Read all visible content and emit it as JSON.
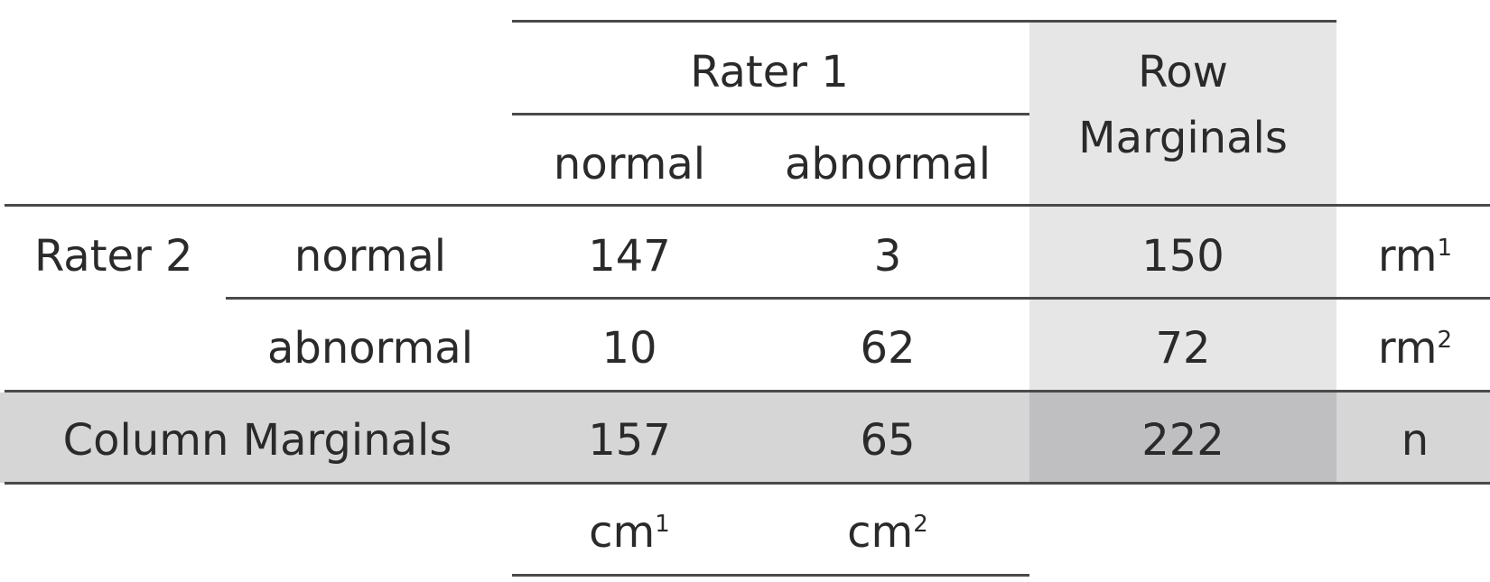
{
  "table": {
    "header": {
      "group_label": "Rater 1",
      "row_marginals_label_line1": "Row",
      "row_marginals_label_line2": "Marginals",
      "col_labels": [
        "normal",
        "abnormal"
      ]
    },
    "row_group_label": "Rater 2",
    "rows": [
      {
        "label": "normal",
        "values": [
          "147",
          "3"
        ],
        "marginal": "150",
        "marginal_symbol": "rm",
        "marginal_symbol_sup": "1"
      },
      {
        "label": "abnormal",
        "values": [
          "10",
          "62"
        ],
        "marginal": "72",
        "marginal_symbol": "rm",
        "marginal_symbol_sup": "2"
      }
    ],
    "column_marginals": {
      "label": "Column Marginals",
      "values": [
        "157",
        "65"
      ],
      "total": "222",
      "total_symbol": "n"
    },
    "column_symbols": [
      {
        "base": "cm",
        "sup": "1"
      },
      {
        "base": "cm",
        "sup": "2"
      }
    ]
  }
}
